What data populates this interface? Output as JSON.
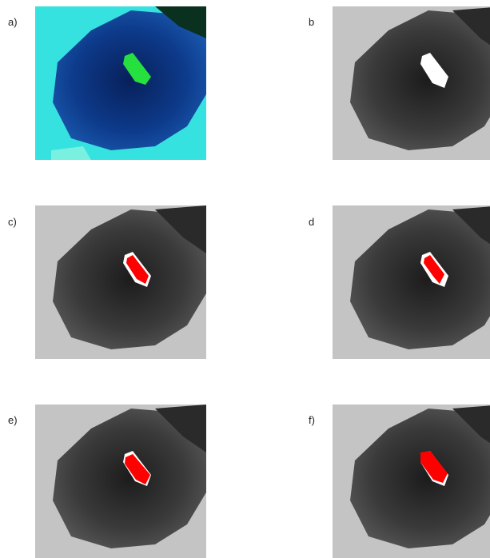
{
  "panels": [
    {
      "label": "a)"
    },
    {
      "label": "b"
    },
    {
      "label": "c)"
    },
    {
      "label": "d"
    },
    {
      "label": "e)"
    },
    {
      "label": "f)"
    }
  ]
}
